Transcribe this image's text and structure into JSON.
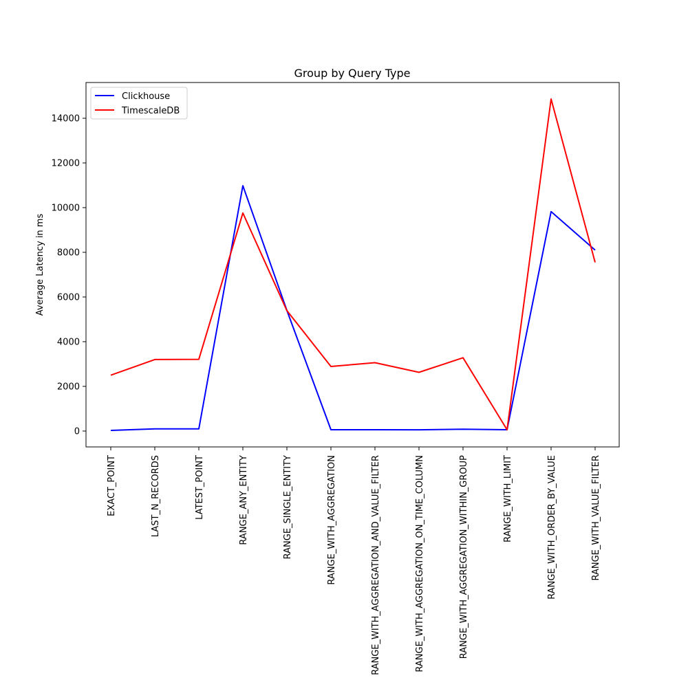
{
  "chart_data": {
    "type": "line",
    "title": "Group by Query Type",
    "xlabel": "",
    "ylabel": "Average Latency in ms",
    "categories": [
      "EXACT_POINT",
      "LAST_N_RECORDS",
      "LATEST_POINT",
      "RANGE_ANY_ENTITY",
      "RANGE_SINGLE_ENTITY",
      "RANGE_WITH_AGGREGATION",
      "RANGE_WITH_AGGREGATION_AND_VALUE_FILTER",
      "RANGE_WITH_AGGREGATION_ON_TIME_COLUMN",
      "RANGE_WITH_AGGREGATION_WITHIN_GROUP",
      "RANGE_WITH_LIMIT",
      "RANGE_WITH_ORDER_BY_VALUE",
      "RANGE_WITH_VALUE_FILTER"
    ],
    "series": [
      {
        "name": "Clickhouse",
        "color": "#0000ff",
        "values": [
          30,
          100,
          95,
          10980,
          5400,
          60,
          60,
          55,
          85,
          60,
          9820,
          8100
        ]
      },
      {
        "name": "TimescaleDB",
        "color": "#ff0000",
        "values": [
          2500,
          3200,
          3210,
          9760,
          5390,
          2890,
          3060,
          2630,
          3280,
          60,
          14860,
          7550
        ]
      }
    ],
    "yticks": [
      0,
      2000,
      4000,
      6000,
      8000,
      10000,
      12000,
      14000
    ],
    "ylim": [
      -710,
      15600
    ],
    "grid": false,
    "legend": "top-left"
  }
}
